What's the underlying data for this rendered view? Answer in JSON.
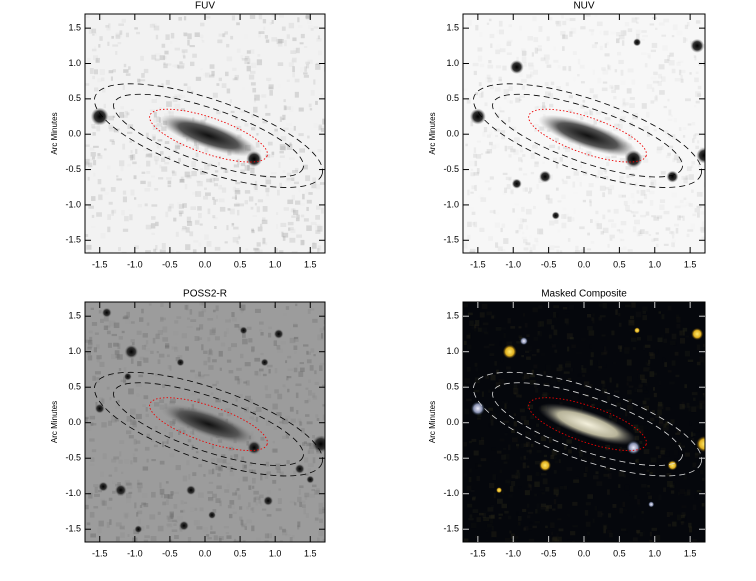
{
  "chart_data": [
    {
      "type": "image",
      "title": "FUV",
      "ylabel": "Arc Minutes",
      "xlim": [
        -1.71,
        1.71
      ],
      "ylim": [
        -1.68,
        1.7
      ],
      "xticks": [
        -1.5,
        {
          "value": -1,
          "label": "-1.0"
        },
        -0.5,
        {
          "value": 0,
          "label": "0.0"
        },
        0.5,
        {
          "value": 1,
          "label": "1.0"
        },
        1.5
      ],
      "yticks": [
        -1.5,
        {
          "value": -1,
          "label": "-1.0"
        },
        -0.5,
        {
          "value": 0,
          "label": "0.0"
        },
        0.5,
        {
          "value": 1,
          "label": "1.0"
        },
        1.5
      ]
    },
    {
      "type": "image",
      "title": "NUV",
      "ylabel": "Arc Minutes",
      "xlim": [
        -1.71,
        1.71
      ],
      "ylim": [
        -1.68,
        1.7
      ],
      "xticks": [
        -1.5,
        {
          "value": -1,
          "label": "-1.0"
        },
        -0.5,
        {
          "value": 0,
          "label": "0.0"
        },
        0.5,
        {
          "value": 1,
          "label": "1.0"
        },
        1.5
      ],
      "yticks": [
        -1.5,
        {
          "value": -1,
          "label": "-1.0"
        },
        -0.5,
        {
          "value": 0,
          "label": "0.0"
        },
        0.5,
        {
          "value": 1,
          "label": "1.0"
        },
        1.5
      ]
    },
    {
      "type": "image",
      "title": "POSS2-R",
      "ylabel": "Arc Minutes",
      "xlim": [
        -1.71,
        1.71
      ],
      "ylim": [
        -1.68,
        1.7
      ],
      "xticks": [
        -1.5,
        {
          "value": -1,
          "label": "-1.0"
        },
        -0.5,
        {
          "value": 0,
          "label": "0.0"
        },
        0.5,
        {
          "value": 1,
          "label": "1.0"
        },
        1.5
      ],
      "yticks": [
        -1.5,
        {
          "value": -1,
          "label": "-1.0"
        },
        -0.5,
        {
          "value": 0,
          "label": "0.0"
        },
        0.5,
        {
          "value": 1,
          "label": "1.0"
        },
        1.5
      ]
    },
    {
      "type": "image",
      "title": "Masked Composite",
      "ylabel": "Arc Minutes",
      "xlim": [
        -1.71,
        1.71
      ],
      "ylim": [
        -1.68,
        1.7
      ],
      "xticks": [
        -1.5,
        {
          "value": -1,
          "label": "-1.0"
        },
        -0.5,
        {
          "value": 0,
          "label": "0.0"
        },
        0.5,
        {
          "value": 1,
          "label": "1.0"
        },
        1.5
      ],
      "yticks": [
        -1.5,
        {
          "value": -1,
          "label": "-1.0"
        },
        -0.5,
        {
          "value": 0,
          "label": "0.0"
        },
        0.5,
        {
          "value": 1,
          "label": "1.0"
        },
        1.5
      ]
    }
  ]
}
